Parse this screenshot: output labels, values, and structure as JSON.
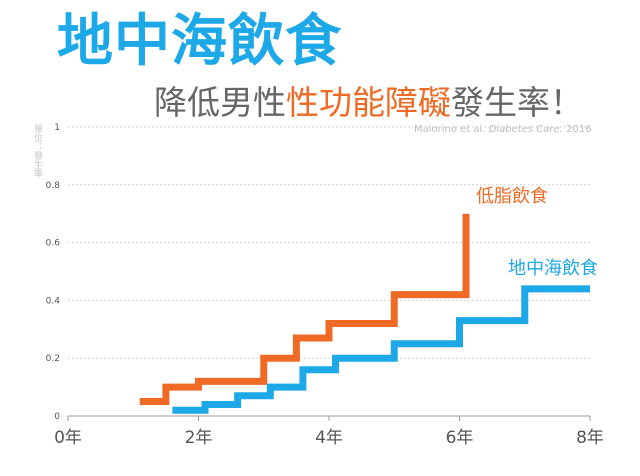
{
  "header": {
    "title": "地中海飲食",
    "subtitle_pre": "降低男性",
    "subtitle_highlight": "性功能障礙",
    "subtitle_post": "發生率！",
    "citation_authors": "Maiorino et al.",
    "citation_journal": "Diabetes Care.",
    "citation_year": "2016",
    "y_unit": "單位：發生率"
  },
  "colors": {
    "title": "#1da8e8",
    "low_fat": "#ef6a24",
    "mediterranean": "#1da8e8",
    "highlight": "#ef6a24"
  },
  "chart_data": {
    "type": "line",
    "step": "post",
    "ylim": [
      0,
      1
    ],
    "xlim": [
      0,
      8
    ],
    "grid": "horizontal dotted",
    "y_ticks": [
      {
        "value": 0,
        "label": "0"
      },
      {
        "value": 0.2,
        "label": "0.2"
      },
      {
        "value": 0.4,
        "label": "0.4"
      },
      {
        "value": 0.6,
        "label": "0.6"
      },
      {
        "value": 0.8,
        "label": "0.8"
      },
      {
        "value": 1,
        "label": "1"
      }
    ],
    "x_ticks": [
      {
        "value": 0,
        "label": "0年"
      },
      {
        "value": 2,
        "label": "2年"
      },
      {
        "value": 4,
        "label": "4年"
      },
      {
        "value": 6,
        "label": "6年"
      },
      {
        "value": 8,
        "label": "8年"
      }
    ],
    "series": [
      {
        "name": "低脂飲食",
        "color": "#ef6a24",
        "x": [
          1.1,
          1.5,
          2.0,
          3.0,
          3.5,
          4.0,
          5.0,
          6.1,
          6.1
        ],
        "y": [
          0.05,
          0.1,
          0.12,
          0.2,
          0.27,
          0.32,
          0.42,
          0.42,
          0.7
        ]
      },
      {
        "name": "地中海飲食",
        "color": "#1da8e8",
        "x": [
          1.6,
          2.1,
          2.6,
          3.1,
          3.6,
          4.1,
          5.0,
          6.0,
          7.0,
          8.0
        ],
        "y": [
          0.02,
          0.04,
          0.07,
          0.1,
          0.16,
          0.2,
          0.25,
          0.33,
          0.44,
          0.44
        ]
      }
    ]
  }
}
